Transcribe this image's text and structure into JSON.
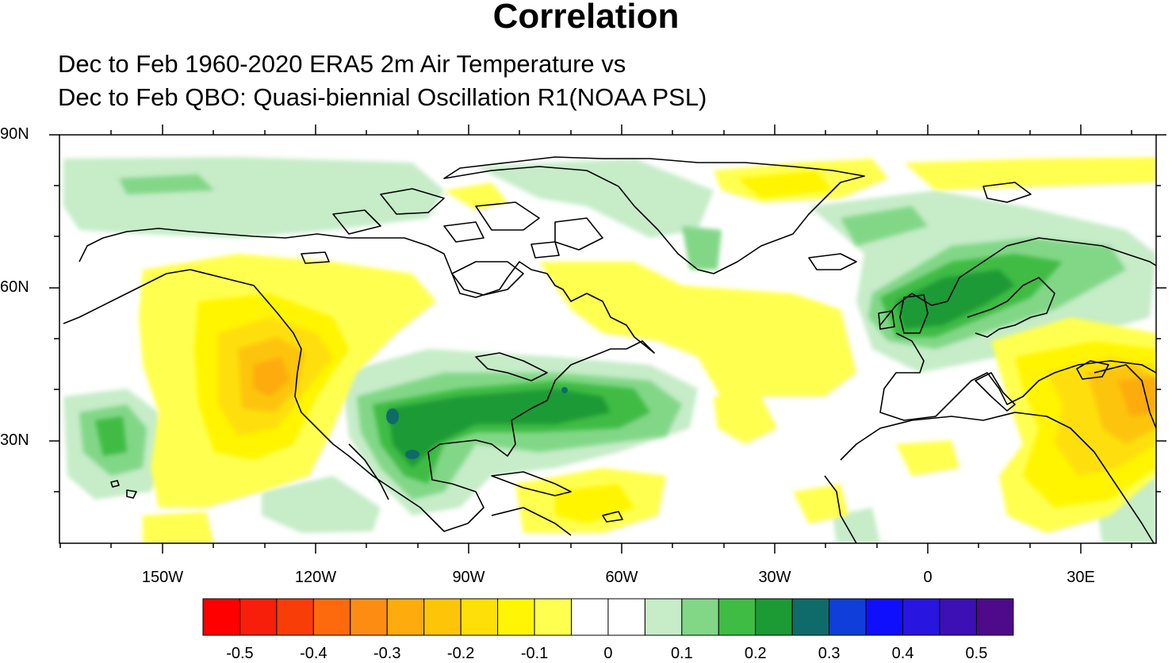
{
  "title": "Correlation",
  "subtitle_line1": "Dec to Feb 1960-2020 ERA5 2m Air Temperature vs",
  "subtitle_line2": "Dec to Feb QBO: Quasi-biennial Oscillation R1(NOAA PSL)",
  "lat_labels": [
    "90N",
    "60N",
    "30N"
  ],
  "lon_labels": [
    "150W",
    "120W",
    "90W",
    "60W",
    "30W",
    "0",
    "30E"
  ],
  "colorbar": {
    "colors": [
      "#ff0000",
      "#f71e0a",
      "#f93d08",
      "#fc6a0d",
      "#fd8d12",
      "#fdab0d",
      "#fdc408",
      "#fedf07",
      "#fff504",
      "#ffff4f",
      "#ffffff",
      "#ffffff",
      "#c6ecc8",
      "#82d787",
      "#3fbc44",
      "#1c9a34",
      "#0f6b6a",
      "#0f3ed8",
      "#0f0ffd",
      "#2815e0",
      "#3c10b4",
      "#4e0a8a"
    ],
    "labels": [
      "-0.5",
      "-0.4",
      "-0.3",
      "-0.2",
      "-0.1",
      "0",
      "0.1",
      "0.2",
      "0.3",
      "0.4",
      "0.5"
    ]
  },
  "map": {
    "projection": "cylindrical equidistant",
    "lon_range": [
      "170W",
      "45E"
    ],
    "lat_range": [
      "10N",
      "90N"
    ]
  }
}
